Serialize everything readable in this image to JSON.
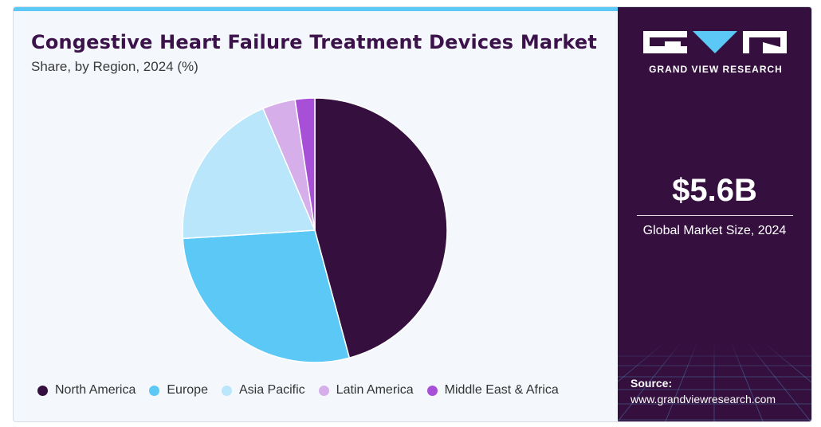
{
  "header": {
    "title": "Congestive Heart Failure Treatment Devices Market",
    "subtitle": "Share, by Region, 2024 (%)"
  },
  "chart_data": {
    "type": "pie",
    "categories": [
      "North America",
      "Europe",
      "Asia Pacific",
      "Latin America",
      "Middle East & Africa"
    ],
    "values": [
      45.8,
      28.2,
      19.6,
      4.0,
      2.4
    ],
    "colors": [
      "#35103f",
      "#5bc8f5",
      "#b9e6fa",
      "#d6aeea",
      "#a84fd8"
    ],
    "legend_position": "bottom",
    "start_angle": "top (12 o'clock), clockwise"
  },
  "sidebar": {
    "brand": "GRAND VIEW RESEARCH",
    "market_size_value": "$5.6B",
    "market_size_label": "Global Market Size, 2024",
    "source_label": "Source:",
    "source_url": "www.grandviewresearch.com",
    "colors": {
      "background": "#35103f",
      "accent": "#5bc8f5"
    }
  }
}
